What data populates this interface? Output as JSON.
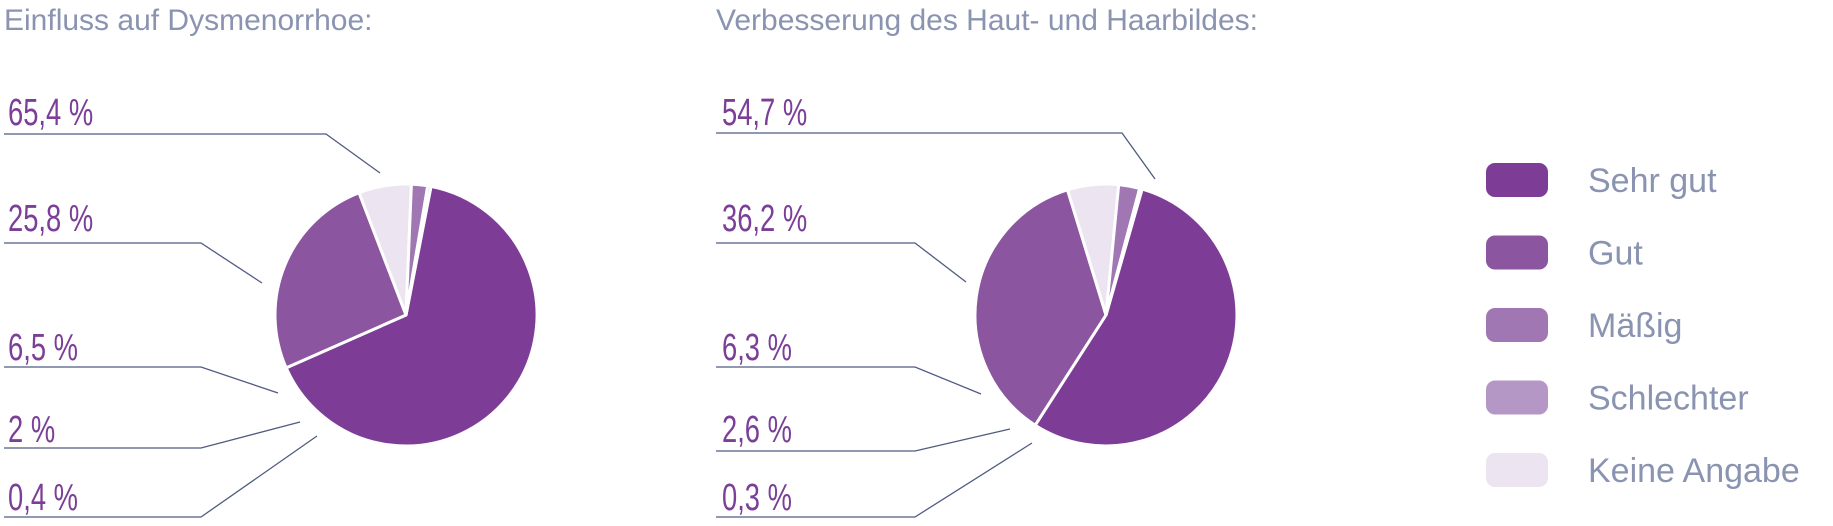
{
  "chart_data": [
    {
      "type": "pie",
      "title": "Einfluss auf Dysmenorrhoe:",
      "slices": [
        {
          "label": "Sehr gut",
          "value": 65.4,
          "display": "65,4 %"
        },
        {
          "label": "Gut",
          "value": 25.8,
          "display": "25,8 %"
        },
        {
          "label": "Keine Angabe",
          "value": 6.5,
          "display": "6,5 %"
        },
        {
          "label": "Mäßig",
          "value": 2.0,
          "display": "2 %"
        },
        {
          "label": "Schlechter",
          "value": 0.4,
          "display": "0,4 %"
        }
      ]
    },
    {
      "type": "pie",
      "title": "Verbesserung des Haut- und Haarbildes:",
      "slices": [
        {
          "label": "Sehr gut",
          "value": 54.7,
          "display": "54,7 %"
        },
        {
          "label": "Gut",
          "value": 36.2,
          "display": "36,2 %"
        },
        {
          "label": "Keine Angabe",
          "value": 6.3,
          "display": "6,3 %"
        },
        {
          "label": "Mäßig",
          "value": 2.6,
          "display": "2,6 %"
        },
        {
          "label": "Schlechter",
          "value": 0.3,
          "display": "0,3 %"
        }
      ]
    }
  ],
  "legend": {
    "items": [
      {
        "label": "Sehr gut",
        "color": "#7d3c96"
      },
      {
        "label": "Gut",
        "color": "#8b559f"
      },
      {
        "label": "Mäßig",
        "color": "#a177b3"
      },
      {
        "label": "Schlechter",
        "color": "#b597c6"
      },
      {
        "label": "Keine Angabe",
        "color": "#ece4f0"
      }
    ]
  },
  "colors": {
    "Sehr gut": "#7d3c96",
    "Gut": "#8b559f",
    "Mäßig": "#a177b3",
    "Schlechter": "#b597c6",
    "Keine Angabe": "#ece4f0"
  }
}
